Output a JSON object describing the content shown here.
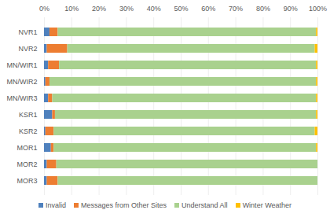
{
  "chart_data": {
    "type": "bar",
    "orientation": "horizontal",
    "stacked": true,
    "grid": true,
    "legend": "bottom",
    "categories": [
      "NVR1",
      "NVR2",
      "MN/WIR1",
      "MN/WIR2",
      "MN/WIR3",
      "KSR1",
      "KSR2",
      "MOR1",
      "MOR2",
      "MOR3"
    ],
    "series": [
      {
        "name": "Invalid",
        "color": "#4f81bd",
        "values": [
          2,
          1,
          1.5,
          0.5,
          1.5,
          3,
          0.5,
          2.5,
          1,
          1
        ]
      },
      {
        "name": "Messages from Other Sites",
        "color": "#ed7d31",
        "values": [
          3,
          7.5,
          4,
          1.5,
          1.5,
          1,
          3,
          1,
          3.5,
          4
        ]
      },
      {
        "name": "Understand All",
        "color": "#a9d18e",
        "values": [
          94.5,
          90.5,
          94,
          97.5,
          96.5,
          95.5,
          95.5,
          96,
          95.5,
          95
        ]
      },
      {
        "name": "Winter Weather",
        "color": "#ffc000",
        "values": [
          0.5,
          1,
          0.5,
          0.5,
          0.5,
          0.5,
          1,
          0.5,
          0,
          0
        ]
      }
    ],
    "xlim": [
      0,
      100
    ],
    "xticks": [
      {
        "value": 0,
        "label": "0%"
      },
      {
        "value": 10,
        "label": "10%"
      },
      {
        "value": 20,
        "label": "20%"
      },
      {
        "value": 30,
        "label": "30%"
      },
      {
        "value": 40,
        "label": "40%"
      },
      {
        "value": 50,
        "label": "50%"
      },
      {
        "value": 60,
        "label": "60%"
      },
      {
        "value": 70,
        "label": "70%"
      },
      {
        "value": 80,
        "label": "80%"
      },
      {
        "value": 90,
        "label": "90%"
      },
      {
        "value": 100,
        "label": "100%"
      }
    ]
  }
}
